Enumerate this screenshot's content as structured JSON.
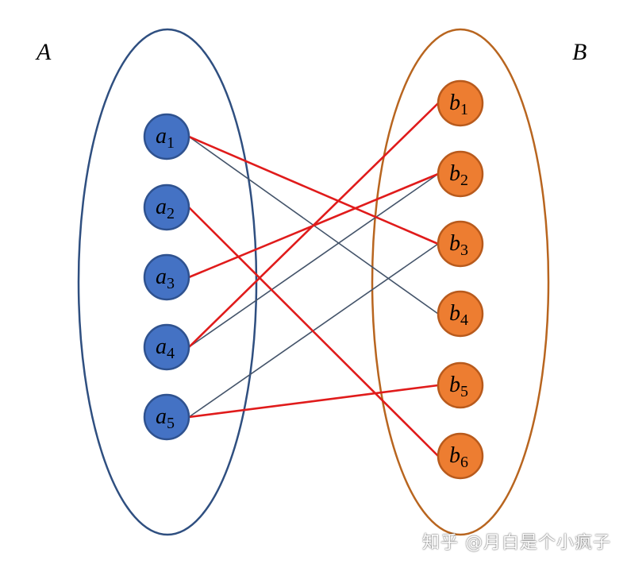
{
  "sets": {
    "A": {
      "label": "A",
      "outline_color": "#2f4f80",
      "node_fill": "#4472c4",
      "node_stroke": "#2f528f",
      "nodes": [
        {
          "id": "a1",
          "var": "a",
          "sub": "1"
        },
        {
          "id": "a2",
          "var": "a",
          "sub": "2"
        },
        {
          "id": "a3",
          "var": "a",
          "sub": "3"
        },
        {
          "id": "a4",
          "var": "a",
          "sub": "4"
        },
        {
          "id": "a5",
          "var": "a",
          "sub": "5"
        }
      ]
    },
    "B": {
      "label": "B",
      "outline_color": "#b8651f",
      "node_fill": "#ed7d31",
      "node_stroke": "#b85a1c",
      "nodes": [
        {
          "id": "b1",
          "var": "b",
          "sub": "1"
        },
        {
          "id": "b2",
          "var": "b",
          "sub": "2"
        },
        {
          "id": "b3",
          "var": "b",
          "sub": "3"
        },
        {
          "id": "b4",
          "var": "b",
          "sub": "4"
        },
        {
          "id": "b5",
          "var": "b",
          "sub": "5"
        },
        {
          "id": "b6",
          "var": "b",
          "sub": "6"
        }
      ]
    }
  },
  "edge_colors": {
    "matched": "#e01b1b",
    "other": "#44546a"
  },
  "edges": [
    {
      "from": "a1",
      "to": "b4",
      "kind": "other"
    },
    {
      "from": "a4",
      "to": "b2",
      "kind": "other"
    },
    {
      "from": "a5",
      "to": "b3",
      "kind": "other"
    },
    {
      "from": "a1",
      "to": "b3",
      "kind": "matched"
    },
    {
      "from": "a2",
      "to": "b6",
      "kind": "matched"
    },
    {
      "from": "a3",
      "to": "b2",
      "kind": "matched"
    },
    {
      "from": "a4",
      "to": "b1",
      "kind": "matched"
    },
    {
      "from": "a5",
      "to": "b5",
      "kind": "matched"
    }
  ],
  "watermark": "知乎 @月白是个小疯子"
}
